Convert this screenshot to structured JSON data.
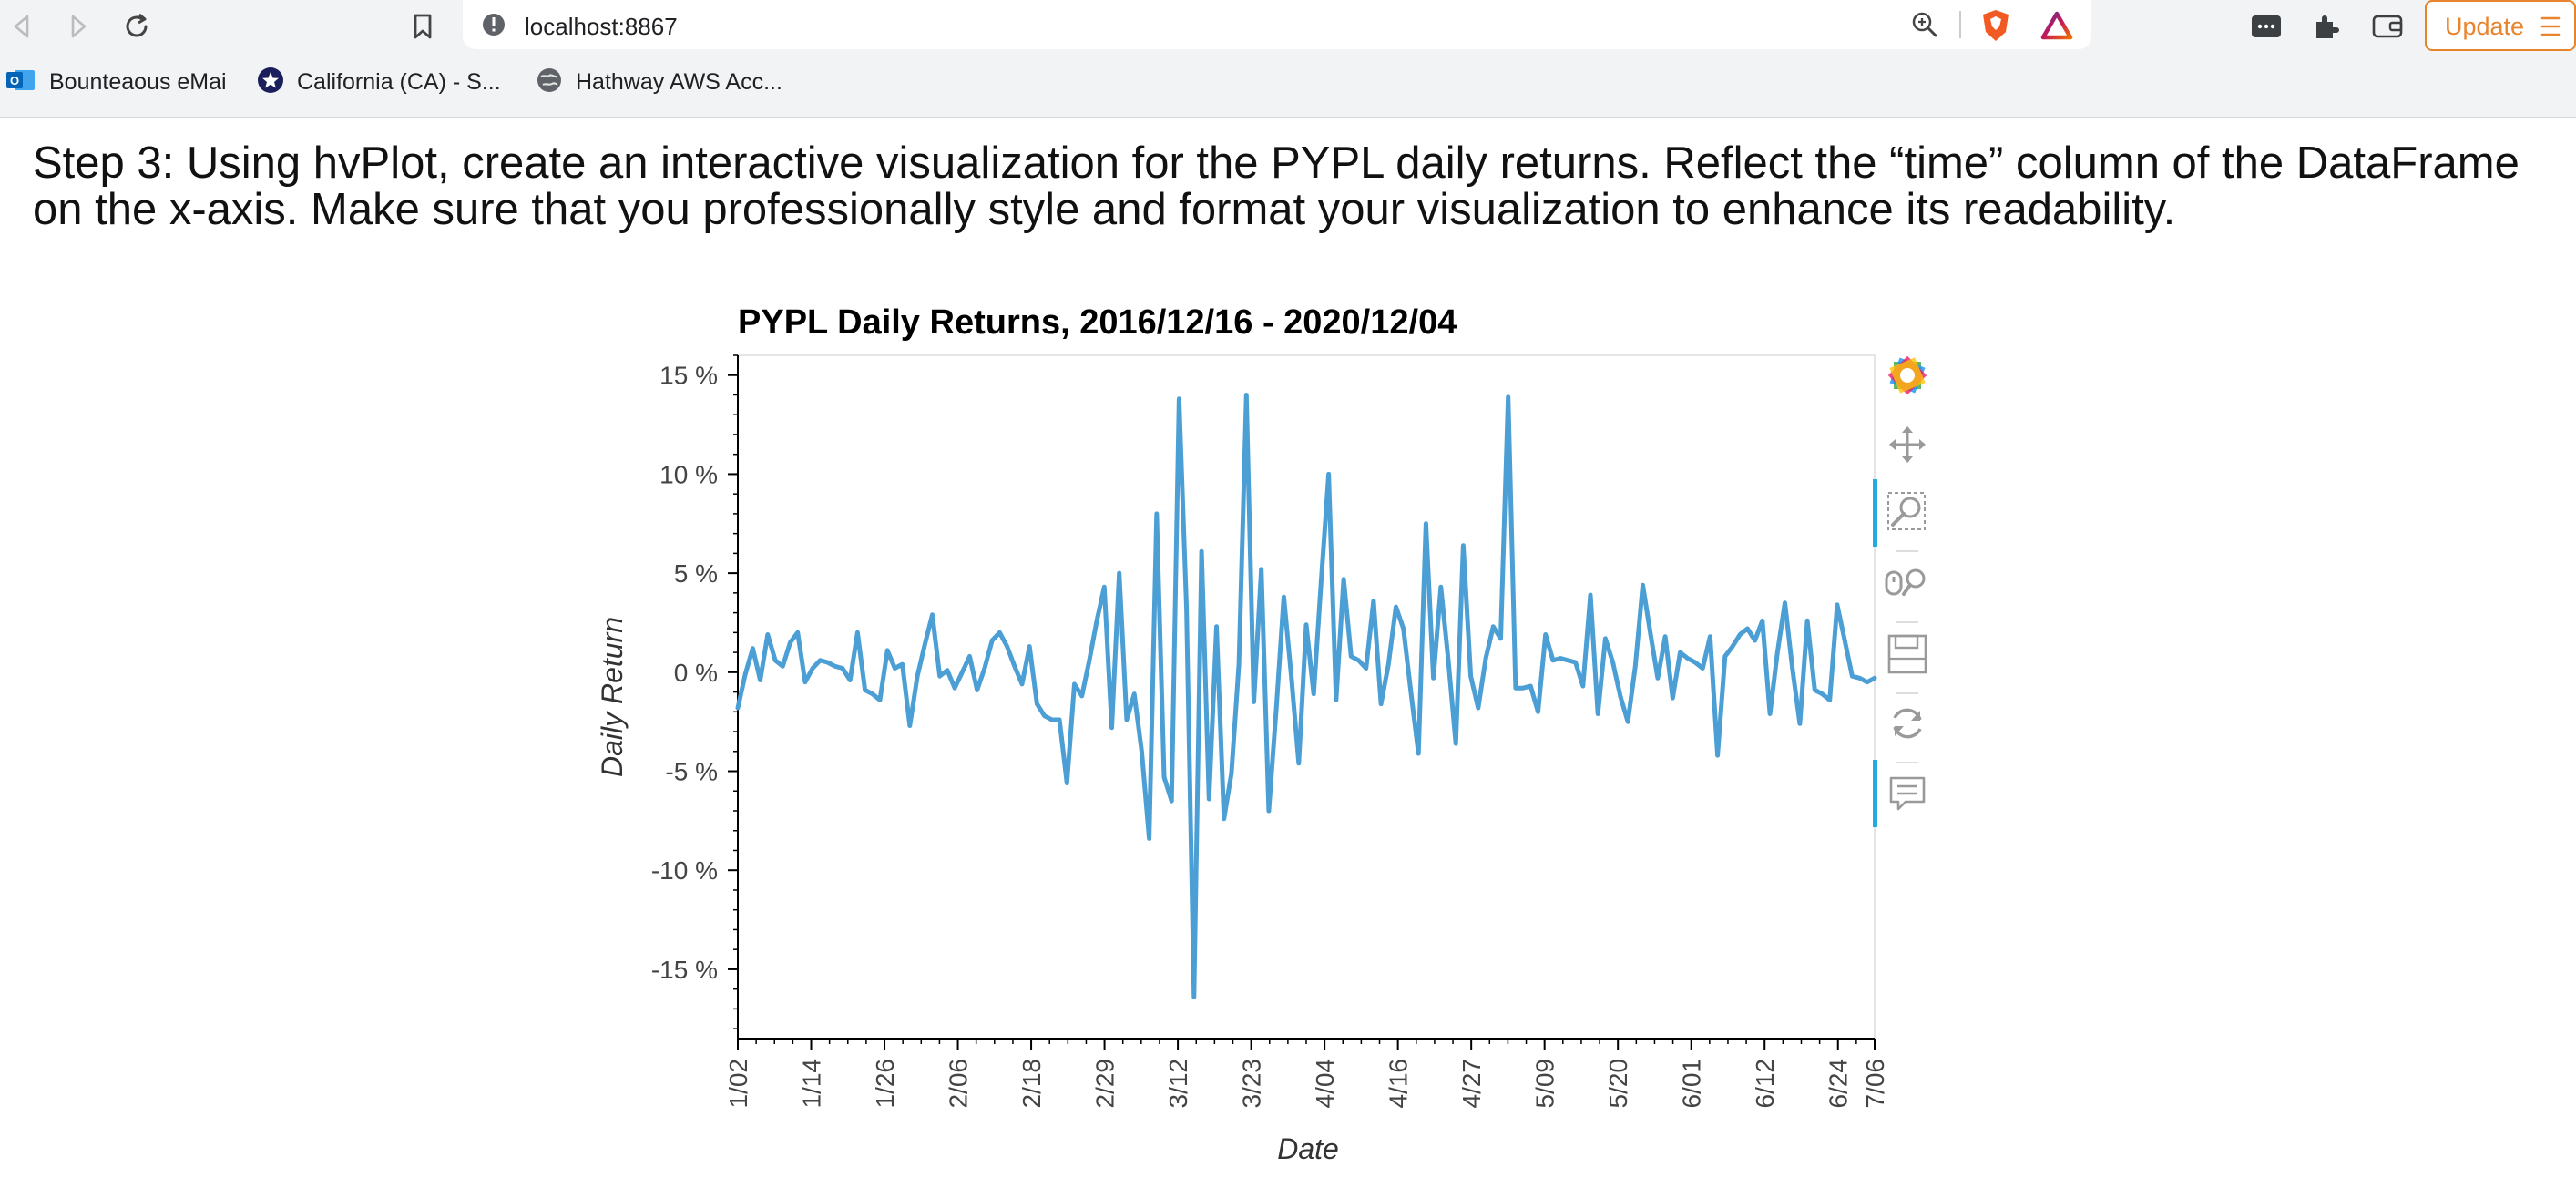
{
  "browser": {
    "url": "localhost:8867",
    "update_label": "Update",
    "bookmarks": [
      {
        "label": "Bounteaous eMai",
        "icon": "outlook-icon"
      },
      {
        "label": "California (CA) - S...",
        "icon": "star-seal-icon"
      },
      {
        "label": "Hathway AWS Acc...",
        "icon": "globe-icon"
      }
    ]
  },
  "page": {
    "heading": "Step 3: Using hvPlot, create an interactive visualization for the PYPL daily returns. Reflect the “time” column of the DataFrame on the x-axis. Make sure that you professionally style and format your visualization to enhance its readability."
  },
  "chart_data": {
    "type": "line",
    "title": "PYPL Daily Returns, 2016/12/16 - 2020/12/04",
    "xlabel": "Date",
    "ylabel": "Daily Return",
    "line_color": "#4c9fd4",
    "ylim": [
      -18.5,
      16
    ],
    "yticks": [
      15,
      10,
      5,
      0,
      -5,
      -10,
      -15
    ],
    "ytick_labels": [
      "15 %",
      "10 %",
      "5 %",
      "0 %",
      "-5 %",
      "-10 %",
      "-15 %"
    ],
    "xlim": [
      0,
      186
    ],
    "xticks": [
      0,
      12,
      24,
      36,
      48,
      60,
      72,
      84,
      96,
      108,
      120,
      132,
      144,
      156,
      168,
      180,
      186
    ],
    "xtick_labels": [
      "1/02",
      "1/14",
      "1/26",
      "2/06",
      "2/18",
      "2/29",
      "3/12",
      "3/23",
      "4/04",
      "4/16",
      "4/27",
      "5/09",
      "5/20",
      "6/01",
      "6/12",
      "6/24",
      "7/06"
    ],
    "x_unit": "days",
    "values": [
      -1.8,
      -0.1,
      1.2,
      -0.4,
      1.9,
      0.6,
      0.3,
      1.5,
      2.0,
      -0.5,
      0.2,
      0.6,
      0.5,
      0.3,
      0.2,
      -0.4,
      2.0,
      -0.9,
      -1.1,
      -1.4,
      1.1,
      0.2,
      0.4,
      -2.7,
      -0.2,
      1.4,
      2.9,
      -0.2,
      0.1,
      -0.8,
      0.0,
      0.8,
      -0.9,
      0.2,
      1.6,
      2.0,
      1.3,
      0.3,
      -0.6,
      1.3,
      -1.6,
      -2.2,
      -2.4,
      -2.4,
      -5.6,
      -0.6,
      -1.2,
      0.6,
      2.6,
      4.3,
      -2.8,
      5.0,
      -2.4,
      -1.1,
      -4.0,
      -8.4,
      8.0,
      -5.3,
      -6.5,
      13.8,
      3.2,
      -16.4,
      6.1,
      -6.4,
      2.3,
      -7.4,
      -5.1,
      0.4,
      14.0,
      -1.5,
      5.2,
      -7.0,
      -1.8,
      3.8,
      -0.2,
      -4.6,
      2.4,
      -1.1,
      4.6,
      10.0,
      -1.4,
      4.7,
      0.8,
      0.6,
      0.2,
      3.6,
      -1.6,
      0.4,
      3.3,
      2.2,
      -1.0,
      -4.1,
      7.5,
      -0.3,
      4.3,
      0.6,
      -3.6,
      6.4,
      -0.2,
      -1.8,
      0.7,
      2.3,
      1.7,
      13.9,
      -0.8,
      -0.8,
      -0.7,
      -2.0,
      1.9,
      0.6,
      0.7,
      0.6,
      0.5,
      -0.7,
      3.9,
      -2.1,
      1.7,
      0.5,
      -1.2,
      -2.5,
      0.3,
      4.4,
      2.0,
      -0.3,
      1.8,
      -1.3,
      1.0,
      0.7,
      0.5,
      0.2,
      1.8,
      -4.2,
      0.8,
      1.3,
      1.9,
      2.2,
      1.6,
      2.6,
      -2.1,
      1.0,
      3.5,
      0.2,
      -2.6,
      2.6,
      -0.9,
      -1.1,
      -1.4,
      3.4,
      1.6,
      -0.2,
      -0.3,
      -0.5,
      -0.3
    ]
  }
}
